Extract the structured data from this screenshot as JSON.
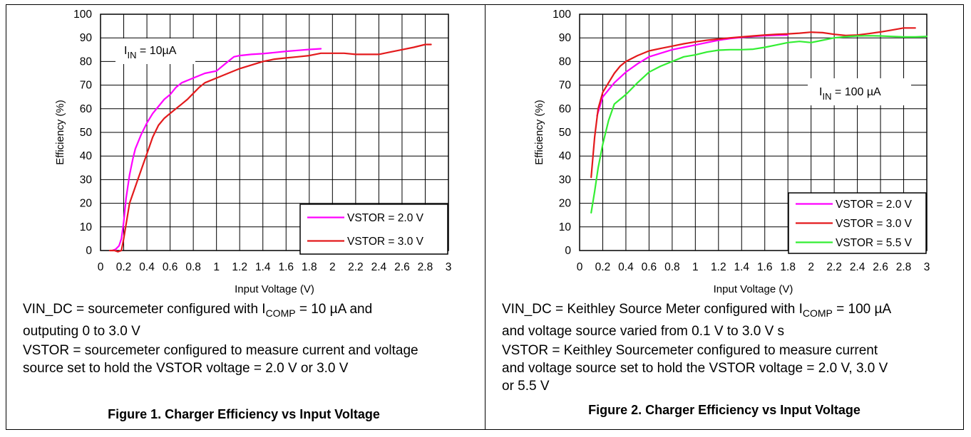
{
  "chart_data": [
    {
      "type": "line",
      "title": "Figure 1. Charger Efficiency vs Input Voltage",
      "xlabel": "Input Voltage (V)",
      "ylabel": "Efficiency (%)",
      "xlim": [
        0,
        3
      ],
      "ylim": [
        0,
        100
      ],
      "xticks": [
        "0",
        "0.2",
        "0.4",
        "0.6",
        "0.8",
        "1",
        "1.2",
        "1.4",
        "1.6",
        "1.8",
        "2",
        "2.2",
        "2.4",
        "2.6",
        "2.8",
        "3"
      ],
      "yticks": [
        "0",
        "10",
        "20",
        "30",
        "40",
        "50",
        "60",
        "70",
        "80",
        "90",
        "100"
      ],
      "grid": true,
      "legend_position": "bottom-right",
      "annotation": {
        "main": "I",
        "sub": "IN",
        "rest": " = 10µA"
      },
      "series": [
        {
          "name": "VSTOR = 2.0 V",
          "color": "#ff00ff",
          "x": [
            0.1,
            0.13,
            0.16,
            0.18,
            0.2,
            0.22,
            0.25,
            0.28,
            0.3,
            0.35,
            0.4,
            0.45,
            0.5,
            0.55,
            0.6,
            0.65,
            0.7,
            0.8,
            0.9,
            1.0,
            1.05,
            1.1,
            1.15,
            1.2,
            1.3,
            1.4,
            1.5,
            1.6,
            1.7,
            1.8,
            1.9
          ],
          "y": [
            0,
            0.5,
            2,
            5,
            12,
            22,
            32,
            39,
            43,
            49,
            54,
            58,
            61,
            64,
            66,
            69,
            71,
            73,
            75,
            76,
            78,
            80,
            82,
            82.5,
            83,
            83.3,
            83.8,
            84.3,
            84.7,
            85.1,
            85.4
          ]
        },
        {
          "name": "VSTOR = 3.0 V",
          "color": "#e31a1c",
          "x": [
            0.08,
            0.12,
            0.15,
            0.18,
            0.2,
            0.22,
            0.25,
            0.3,
            0.35,
            0.4,
            0.45,
            0.5,
            0.55,
            0.6,
            0.65,
            0.7,
            0.75,
            0.8,
            0.85,
            0.9,
            1.0,
            1.1,
            1.2,
            1.3,
            1.4,
            1.5,
            1.6,
            1.7,
            1.8,
            1.9,
            2.0,
            2.1,
            2.2,
            2.3,
            2.4,
            2.5,
            2.6,
            2.7,
            2.8,
            2.85
          ],
          "y": [
            0,
            0,
            -0.5,
            0,
            5,
            11,
            20,
            27,
            34,
            41,
            48,
            53,
            56,
            58,
            60,
            62,
            64,
            66.5,
            69,
            71,
            73,
            75,
            77,
            78.5,
            80,
            81,
            81.5,
            82,
            82.5,
            83.5,
            83.5,
            83.5,
            83,
            83,
            83,
            84,
            85,
            86,
            87.2,
            87.2
          ]
        }
      ]
    },
    {
      "type": "line",
      "title": "Figure 2. Charger Efficiency vs Input Voltage",
      "xlabel": "Input Voltage (V)",
      "ylabel": "Efficiency (%)",
      "xlim": [
        0,
        3
      ],
      "ylim": [
        0,
        100
      ],
      "xticks": [
        "0",
        "0.2",
        "0.4",
        "0.6",
        "0.8",
        "1",
        "1.2",
        "1.4",
        "1.6",
        "1.8",
        "2",
        "2.2",
        "2.4",
        "2.6",
        "2.8",
        "3"
      ],
      "yticks": [
        "0",
        "10",
        "20",
        "30",
        "40",
        "50",
        "60",
        "70",
        "80",
        "90",
        "100"
      ],
      "grid": true,
      "legend_position": "bottom-right",
      "annotation": {
        "main": "I",
        "sub": "IN",
        "rest": " = 100 µA"
      },
      "series": [
        {
          "name": "VSTOR = 2.0 V",
          "color": "#ff00ff",
          "x": [
            0.15,
            0.2,
            0.25,
            0.3,
            0.4,
            0.5,
            0.6,
            0.7,
            0.8,
            0.9,
            1.0,
            1.1,
            1.2,
            1.3,
            1.4,
            1.5,
            1.6,
            1.7,
            1.8
          ],
          "y": [
            57,
            65,
            68,
            71,
            75.5,
            79,
            82,
            83.5,
            85,
            86,
            87,
            88,
            89,
            89.7,
            90.2,
            90.6,
            90.9,
            91.1,
            91.2
          ]
        },
        {
          "name": "VSTOR = 3.0 V",
          "color": "#e31a1c",
          "x": [
            0.1,
            0.13,
            0.16,
            0.2,
            0.25,
            0.3,
            0.35,
            0.4,
            0.5,
            0.6,
            0.7,
            0.8,
            0.9,
            1.0,
            1.1,
            1.2,
            1.3,
            1.4,
            1.5,
            1.6,
            1.7,
            1.8,
            1.9,
            2.0,
            2.1,
            2.2,
            2.3,
            2.4,
            2.5,
            2.6,
            2.7,
            2.8,
            2.9
          ],
          "y": [
            31,
            48,
            60,
            67,
            71,
            75,
            78,
            80,
            82.5,
            84.5,
            85.5,
            86.5,
            87.5,
            88.3,
            89,
            89.5,
            90,
            90.4,
            90.8,
            91.2,
            91.5,
            91.7,
            92,
            92.4,
            92.2,
            91.5,
            91,
            91.2,
            91.8,
            92.5,
            93.3,
            94.2,
            94.2
          ]
        },
        {
          "name": "VSTOR = 5.5 V",
          "color": "#33ee33",
          "x": [
            0.1,
            0.13,
            0.16,
            0.2,
            0.25,
            0.3,
            0.35,
            0.4,
            0.5,
            0.6,
            0.7,
            0.8,
            0.9,
            1.0,
            1.1,
            1.2,
            1.3,
            1.4,
            1.5,
            1.6,
            1.7,
            1.8,
            1.9,
            2.0,
            2.1,
            2.2,
            2.3,
            2.4,
            2.5,
            2.6,
            2.7,
            2.8,
            2.9,
            3.0
          ],
          "y": [
            16,
            25,
            35,
            45,
            55,
            62,
            64,
            66,
            71,
            75.5,
            78,
            80,
            82,
            82.8,
            84,
            84.8,
            85,
            85,
            85.2,
            86,
            87,
            88,
            88.5,
            88,
            89,
            90,
            90.5,
            90.8,
            90.9,
            90.8,
            90.6,
            90.4,
            90.4,
            90.6
          ]
        }
      ]
    }
  ],
  "notes": {
    "left": {
      "line1_pre": "VIN_DC = sourcemeter configured with I",
      "line1_sub": "COMP",
      "line1_post": " = 10 µA and",
      "line2": "outputing 0 to 3.0 V",
      "line3": "VSTOR = sourcemeter configured to measure current and voltage",
      "line4": "source set to hold the VSTOR voltage = 2.0 V or 3.0 V"
    },
    "right": {
      "line1_pre": "VIN_DC = Keithley Source Meter configured with I",
      "line1_sub": "COMP",
      "line1_post": " = 100 µA",
      "line2": "and voltage source varied from 0.1 V to 3.0 V s",
      "line3": "VSTOR = Keithley Sourcemeter configured to measure current",
      "line4": "and voltage source set to hold the VSTOR voltage = 2.0 V, 3.0 V",
      "line5": "or 5.5 V"
    }
  },
  "captions": {
    "left": "Figure 1. Charger Efficiency vs Input Voltage",
    "right": "Figure 2. Charger Efficiency vs Input Voltage"
  }
}
